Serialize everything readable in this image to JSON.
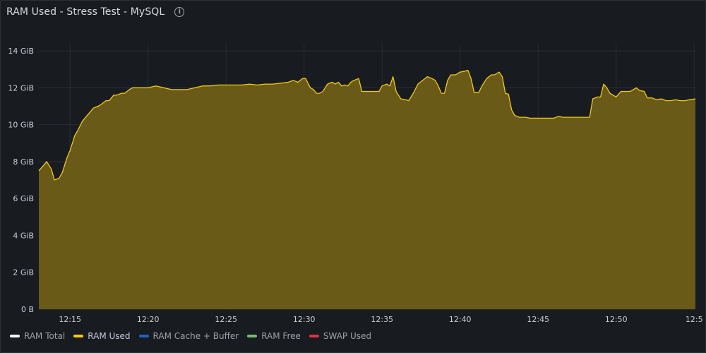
{
  "panel": {
    "title": "RAM Used - Stress Test - MySQL",
    "info_icon": "info-icon"
  },
  "legend": [
    {
      "label": "RAM Total",
      "color": "#ffffff",
      "active": false
    },
    {
      "label": "RAM Used",
      "color": "#f2cc0c",
      "active": true
    },
    {
      "label": "RAM Cache + Buffer",
      "color": "#1f60c4",
      "active": false
    },
    {
      "label": "RAM Free",
      "color": "#73bf69",
      "active": false
    },
    {
      "label": "SWAP Used",
      "color": "#e02f44",
      "active": false
    }
  ],
  "chart_data": {
    "type": "area",
    "series": [
      {
        "name": "RAM Used",
        "color": "#f2cc0c",
        "fill": "#6e5e18"
      }
    ],
    "ylabel": "",
    "ylim": [
      0,
      14
    ],
    "y_ticks": [
      0,
      2,
      4,
      6,
      8,
      10,
      12,
      14
    ],
    "y_tick_labels": [
      "0 B",
      "2 GiB",
      "4 GiB",
      "6 GiB",
      "8 GiB",
      "10 GiB",
      "12 GiB",
      "14 GiB"
    ],
    "x_tick_labels": [
      "12:15",
      "12:20",
      "12:25",
      "12:30",
      "12:35",
      "12:40",
      "12:45",
      "12:50",
      "12:5"
    ],
    "x_ticks_min": [
      2,
      7,
      12,
      17,
      22,
      27,
      32,
      37,
      42
    ],
    "xlim_min": [
      0,
      42.08
    ],
    "grid": true,
    "points": [
      [
        0,
        7.5
      ],
      [
        0.5,
        8.0
      ],
      [
        0.8,
        7.6
      ],
      [
        1.0,
        7.0
      ],
      [
        1.3,
        7.1
      ],
      [
        1.5,
        7.4
      ],
      [
        1.8,
        8.2
      ],
      [
        2.0,
        8.6
      ],
      [
        2.3,
        9.4
      ],
      [
        2.5,
        9.7
      ],
      [
        2.8,
        10.2
      ],
      [
        3.0,
        10.4
      ],
      [
        3.3,
        10.7
      ],
      [
        3.5,
        10.9
      ],
      [
        3.8,
        11.0
      ],
      [
        4.0,
        11.1
      ],
      [
        4.3,
        11.3
      ],
      [
        4.5,
        11.3
      ],
      [
        4.8,
        11.6
      ],
      [
        5.0,
        11.6
      ],
      [
        5.3,
        11.7
      ],
      [
        5.5,
        11.7
      ],
      [
        5.8,
        11.9
      ],
      [
        6.0,
        12.0
      ],
      [
        6.5,
        12.0
      ],
      [
        7.0,
        12.0
      ],
      [
        7.5,
        12.1
      ],
      [
        8.0,
        12.0
      ],
      [
        8.5,
        11.9
      ],
      [
        9.0,
        11.9
      ],
      [
        9.5,
        11.9
      ],
      [
        10.0,
        12.0
      ],
      [
        10.5,
        12.1
      ],
      [
        11.0,
        12.1
      ],
      [
        11.5,
        12.15
      ],
      [
        12.0,
        12.15
      ],
      [
        12.5,
        12.15
      ],
      [
        13.0,
        12.15
      ],
      [
        13.5,
        12.2
      ],
      [
        14.0,
        12.15
      ],
      [
        14.5,
        12.2
      ],
      [
        15.0,
        12.2
      ],
      [
        15.5,
        12.25
      ],
      [
        16.0,
        12.3
      ],
      [
        16.3,
        12.4
      ],
      [
        16.6,
        12.3
      ],
      [
        16.9,
        12.5
      ],
      [
        17.1,
        12.5
      ],
      [
        17.4,
        12.0
      ],
      [
        17.6,
        11.9
      ],
      [
        17.8,
        11.7
      ],
      [
        18.0,
        11.7
      ],
      [
        18.2,
        11.8
      ],
      [
        18.5,
        12.2
      ],
      [
        18.8,
        12.3
      ],
      [
        19.0,
        12.2
      ],
      [
        19.2,
        12.3
      ],
      [
        19.4,
        12.1
      ],
      [
        19.6,
        12.15
      ],
      [
        19.8,
        12.1
      ],
      [
        20.0,
        12.3
      ],
      [
        20.2,
        12.4
      ],
      [
        20.5,
        12.5
      ],
      [
        20.7,
        11.8
      ],
      [
        21.0,
        11.8
      ],
      [
        21.5,
        11.8
      ],
      [
        21.8,
        11.8
      ],
      [
        22.0,
        12.1
      ],
      [
        22.3,
        12.2
      ],
      [
        22.5,
        12.1
      ],
      [
        22.7,
        12.6
      ],
      [
        22.9,
        11.8
      ],
      [
        23.2,
        11.4
      ],
      [
        23.5,
        11.35
      ],
      [
        23.7,
        11.3
      ],
      [
        24.0,
        11.7
      ],
      [
        24.3,
        12.2
      ],
      [
        24.6,
        12.4
      ],
      [
        24.9,
        12.6
      ],
      [
        25.2,
        12.5
      ],
      [
        25.4,
        12.4
      ],
      [
        25.6,
        12.1
      ],
      [
        25.8,
        11.7
      ],
      [
        26.0,
        11.7
      ],
      [
        26.2,
        12.4
      ],
      [
        26.4,
        12.7
      ],
      [
        26.7,
        12.7
      ],
      [
        27.0,
        12.85
      ],
      [
        27.3,
        12.9
      ],
      [
        27.5,
        12.95
      ],
      [
        27.7,
        12.5
      ],
      [
        27.9,
        11.75
      ],
      [
        28.2,
        11.75
      ],
      [
        28.4,
        12.1
      ],
      [
        28.7,
        12.5
      ],
      [
        29.0,
        12.7
      ],
      [
        29.2,
        12.7
      ],
      [
        29.5,
        12.85
      ],
      [
        29.7,
        12.6
      ],
      [
        29.9,
        11.7
      ],
      [
        30.1,
        11.65
      ],
      [
        30.3,
        10.8
      ],
      [
        30.5,
        10.5
      ],
      [
        30.8,
        10.4
      ],
      [
        31.2,
        10.4
      ],
      [
        31.5,
        10.35
      ],
      [
        32.0,
        10.35
      ],
      [
        32.5,
        10.35
      ],
      [
        33.0,
        10.35
      ],
      [
        33.3,
        10.45
      ],
      [
        33.6,
        10.4
      ],
      [
        34.0,
        10.4
      ],
      [
        34.5,
        10.4
      ],
      [
        35.0,
        10.4
      ],
      [
        35.3,
        10.4
      ],
      [
        35.5,
        11.4
      ],
      [
        35.8,
        11.5
      ],
      [
        36.0,
        11.5
      ],
      [
        36.2,
        12.2
      ],
      [
        36.4,
        12.0
      ],
      [
        36.6,
        11.7
      ],
      [
        36.8,
        11.6
      ],
      [
        37.0,
        11.5
      ],
      [
        37.3,
        11.8
      ],
      [
        37.6,
        11.8
      ],
      [
        37.9,
        11.8
      ],
      [
        38.1,
        11.9
      ],
      [
        38.3,
        12.0
      ],
      [
        38.5,
        11.85
      ],
      [
        38.8,
        11.8
      ],
      [
        39.0,
        11.45
      ],
      [
        39.3,
        11.45
      ],
      [
        39.6,
        11.35
      ],
      [
        39.9,
        11.4
      ],
      [
        40.2,
        11.3
      ],
      [
        40.5,
        11.3
      ],
      [
        40.8,
        11.35
      ],
      [
        41.1,
        11.3
      ],
      [
        41.4,
        11.3
      ],
      [
        41.7,
        11.35
      ],
      [
        42.08,
        11.4
      ]
    ]
  }
}
